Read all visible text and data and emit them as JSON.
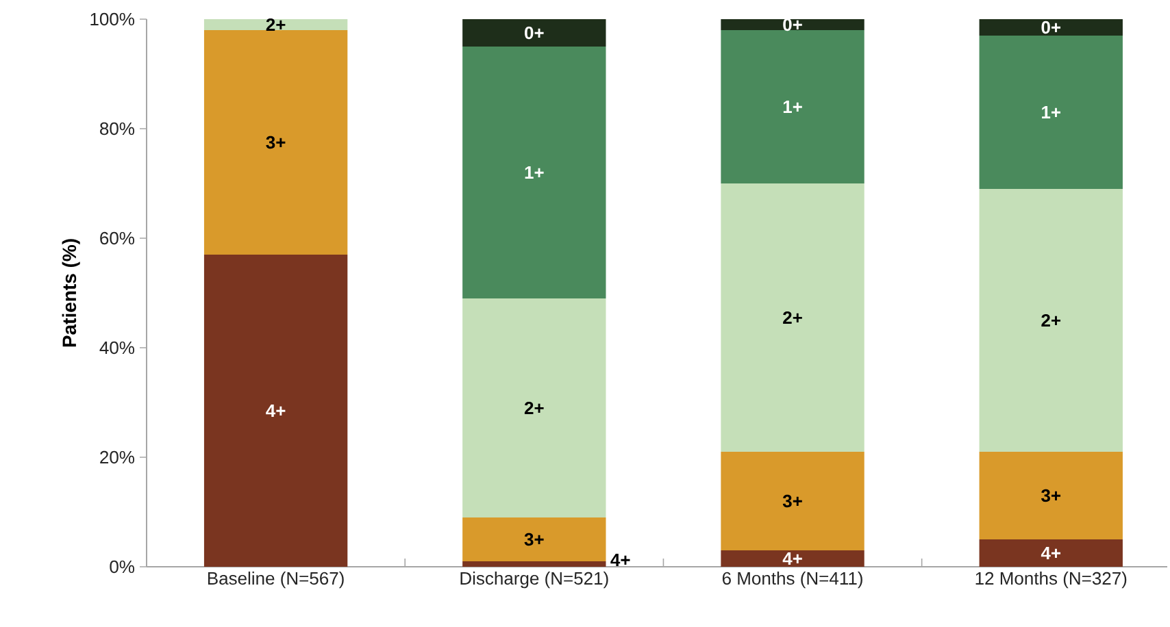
{
  "chart_data": {
    "type": "bar",
    "stacked": true,
    "ylabel": "Patients (%)",
    "categories": [
      "Baseline (N=567)",
      "Discharge (N=521)",
      "6 Months (N=411)",
      "12 Months (N=327)"
    ],
    "series": [
      {
        "name": "4+",
        "color": "#7a3520",
        "values": [
          57,
          1,
          3,
          5
        ]
      },
      {
        "name": "3+",
        "color": "#d99a2b",
        "values": [
          41,
          8,
          18,
          16
        ]
      },
      {
        "name": "2+",
        "color": "#c5dfb8",
        "values": [
          2,
          40,
          49,
          48
        ]
      },
      {
        "name": "1+",
        "color": "#4a8a5c",
        "values": [
          null,
          46,
          28,
          28
        ]
      },
      {
        "name": "0+",
        "color": "#1e2e1a",
        "values": [
          null,
          5,
          2,
          3
        ]
      }
    ],
    "ylim": [
      0,
      100
    ],
    "yticks": [
      {
        "value": 0,
        "label": "0%"
      },
      {
        "value": 20,
        "label": "20%"
      },
      {
        "value": 40,
        "label": "40%"
      },
      {
        "value": 60,
        "label": "60%"
      },
      {
        "value": 80,
        "label": "80%"
      },
      {
        "value": 100,
        "label": "100%"
      }
    ],
    "grid": false
  }
}
